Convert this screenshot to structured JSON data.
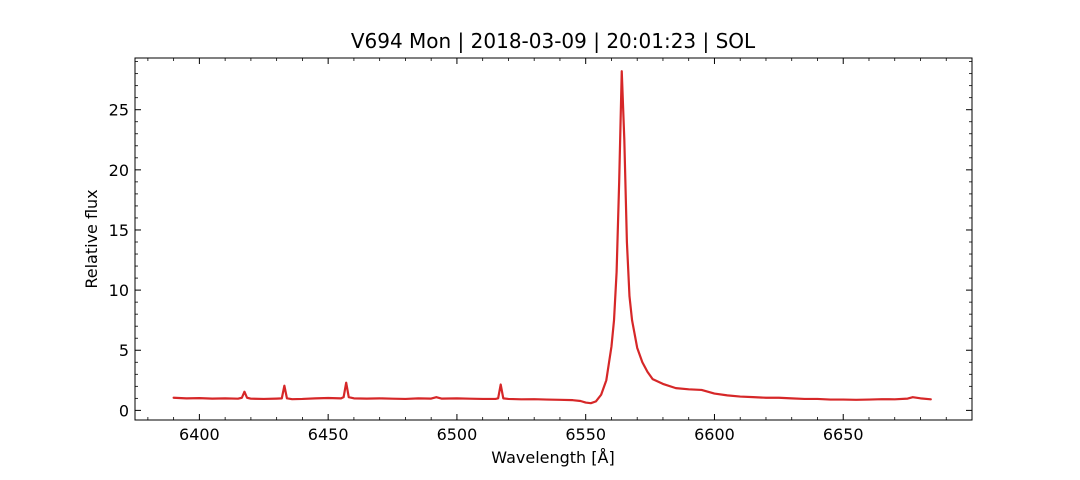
{
  "chart_data": {
    "type": "line",
    "title": "V694 Mon | 2018-03-09 | 20:01:23 | SOL",
    "xlabel": "Wavelength [Å]",
    "ylabel": "Relative flux",
    "xlim": [
      6375,
      6700
    ],
    "ylim": [
      -0.8,
      29.3
    ],
    "xticks": [
      6400,
      6450,
      6500,
      6550,
      6600,
      6650
    ],
    "yticks": [
      0,
      5,
      10,
      15,
      20,
      25
    ],
    "x_minor_step": 10,
    "y_minor_step": 1,
    "grid": false,
    "legend": "none",
    "series": [
      {
        "color": "#d62728",
        "points": [
          [
            6390,
            1.05
          ],
          [
            6395,
            1.0
          ],
          [
            6400,
            1.02
          ],
          [
            6405,
            0.98
          ],
          [
            6410,
            1.0
          ],
          [
            6415,
            0.97
          ],
          [
            6416.5,
            1.05
          ],
          [
            6417.5,
            1.55
          ],
          [
            6418.5,
            1.05
          ],
          [
            6420,
            0.97
          ],
          [
            6425,
            0.95
          ],
          [
            6430,
            0.98
          ],
          [
            6432,
            1.0
          ],
          [
            6433,
            2.05
          ],
          [
            6434,
            1.0
          ],
          [
            6436,
            0.93
          ],
          [
            6440,
            0.95
          ],
          [
            6445,
            1.0
          ],
          [
            6450,
            1.03
          ],
          [
            6455,
            1.0
          ],
          [
            6456,
            1.1
          ],
          [
            6457,
            2.3
          ],
          [
            6458,
            1.1
          ],
          [
            6460,
            1.0
          ],
          [
            6465,
            0.98
          ],
          [
            6470,
            1.0
          ],
          [
            6475,
            0.97
          ],
          [
            6480,
            0.95
          ],
          [
            6485,
            1.0
          ],
          [
            6490,
            0.98
          ],
          [
            6492,
            1.1
          ],
          [
            6494,
            0.98
          ],
          [
            6500,
            1.0
          ],
          [
            6505,
            0.97
          ],
          [
            6510,
            0.95
          ],
          [
            6515,
            0.95
          ],
          [
            6516,
            1.0
          ],
          [
            6517,
            2.15
          ],
          [
            6518,
            1.0
          ],
          [
            6520,
            0.95
          ],
          [
            6525,
            0.92
          ],
          [
            6530,
            0.93
          ],
          [
            6535,
            0.9
          ],
          [
            6540,
            0.88
          ],
          [
            6545,
            0.85
          ],
          [
            6548,
            0.78
          ],
          [
            6550,
            0.65
          ],
          [
            6552,
            0.6
          ],
          [
            6554,
            0.75
          ],
          [
            6556,
            1.3
          ],
          [
            6558,
            2.5
          ],
          [
            6559,
            3.9
          ],
          [
            6560,
            5.3
          ],
          [
            6561,
            7.5
          ],
          [
            6562,
            11.5
          ],
          [
            6563,
            19.0
          ],
          [
            6564,
            28.2
          ],
          [
            6565,
            22.5
          ],
          [
            6566,
            14.0
          ],
          [
            6567,
            9.5
          ],
          [
            6568,
            7.5
          ],
          [
            6570,
            5.2
          ],
          [
            6572,
            4.0
          ],
          [
            6574,
            3.2
          ],
          [
            6576,
            2.6
          ],
          [
            6580,
            2.2
          ],
          [
            6585,
            1.85
          ],
          [
            6590,
            1.75
          ],
          [
            6595,
            1.7
          ],
          [
            6600,
            1.4
          ],
          [
            6605,
            1.25
          ],
          [
            6610,
            1.15
          ],
          [
            6615,
            1.1
          ],
          [
            6620,
            1.05
          ],
          [
            6625,
            1.05
          ],
          [
            6630,
            1.0
          ],
          [
            6635,
            0.95
          ],
          [
            6640,
            0.95
          ],
          [
            6645,
            0.9
          ],
          [
            6650,
            0.9
          ],
          [
            6655,
            0.88
          ],
          [
            6660,
            0.9
          ],
          [
            6665,
            0.93
          ],
          [
            6670,
            0.92
          ],
          [
            6675,
            0.98
          ],
          [
            6677,
            1.1
          ],
          [
            6680,
            1.0
          ],
          [
            6684,
            0.92
          ]
        ]
      }
    ]
  }
}
